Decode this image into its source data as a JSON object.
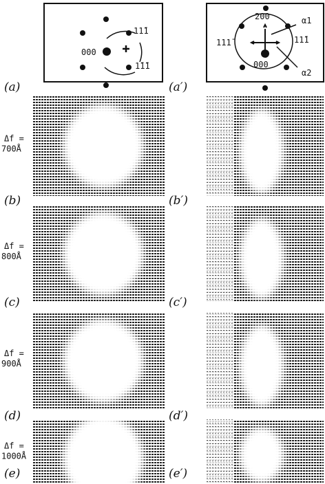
{
  "diagrams": {
    "left": {
      "label": "(a)",
      "spots": [
        "000",
        "11̄1",
        "1̄1̄1"
      ]
    },
    "right": {
      "label": "(a′)",
      "spots": [
        "200",
        "111̄",
        "11̄1",
        "000"
      ],
      "arrows": [
        "α1",
        "α2"
      ]
    }
  },
  "rows": [
    {
      "defocus": [
        "Δf =",
        "700Å"
      ],
      "left_label": "(b)",
      "right_label": "(b′)"
    },
    {
      "defocus": [
        "Δf =",
        "800Å"
      ],
      "left_label": "(c)",
      "right_label": "(c′)"
    },
    {
      "defocus": [
        "Δf =",
        "900Å"
      ],
      "left_label": "(d)",
      "right_label": "(d′)"
    },
    {
      "defocus": [
        "Δf =",
        "1000Å"
      ],
      "left_label": "(e)",
      "right_label": "(e′)"
    }
  ]
}
